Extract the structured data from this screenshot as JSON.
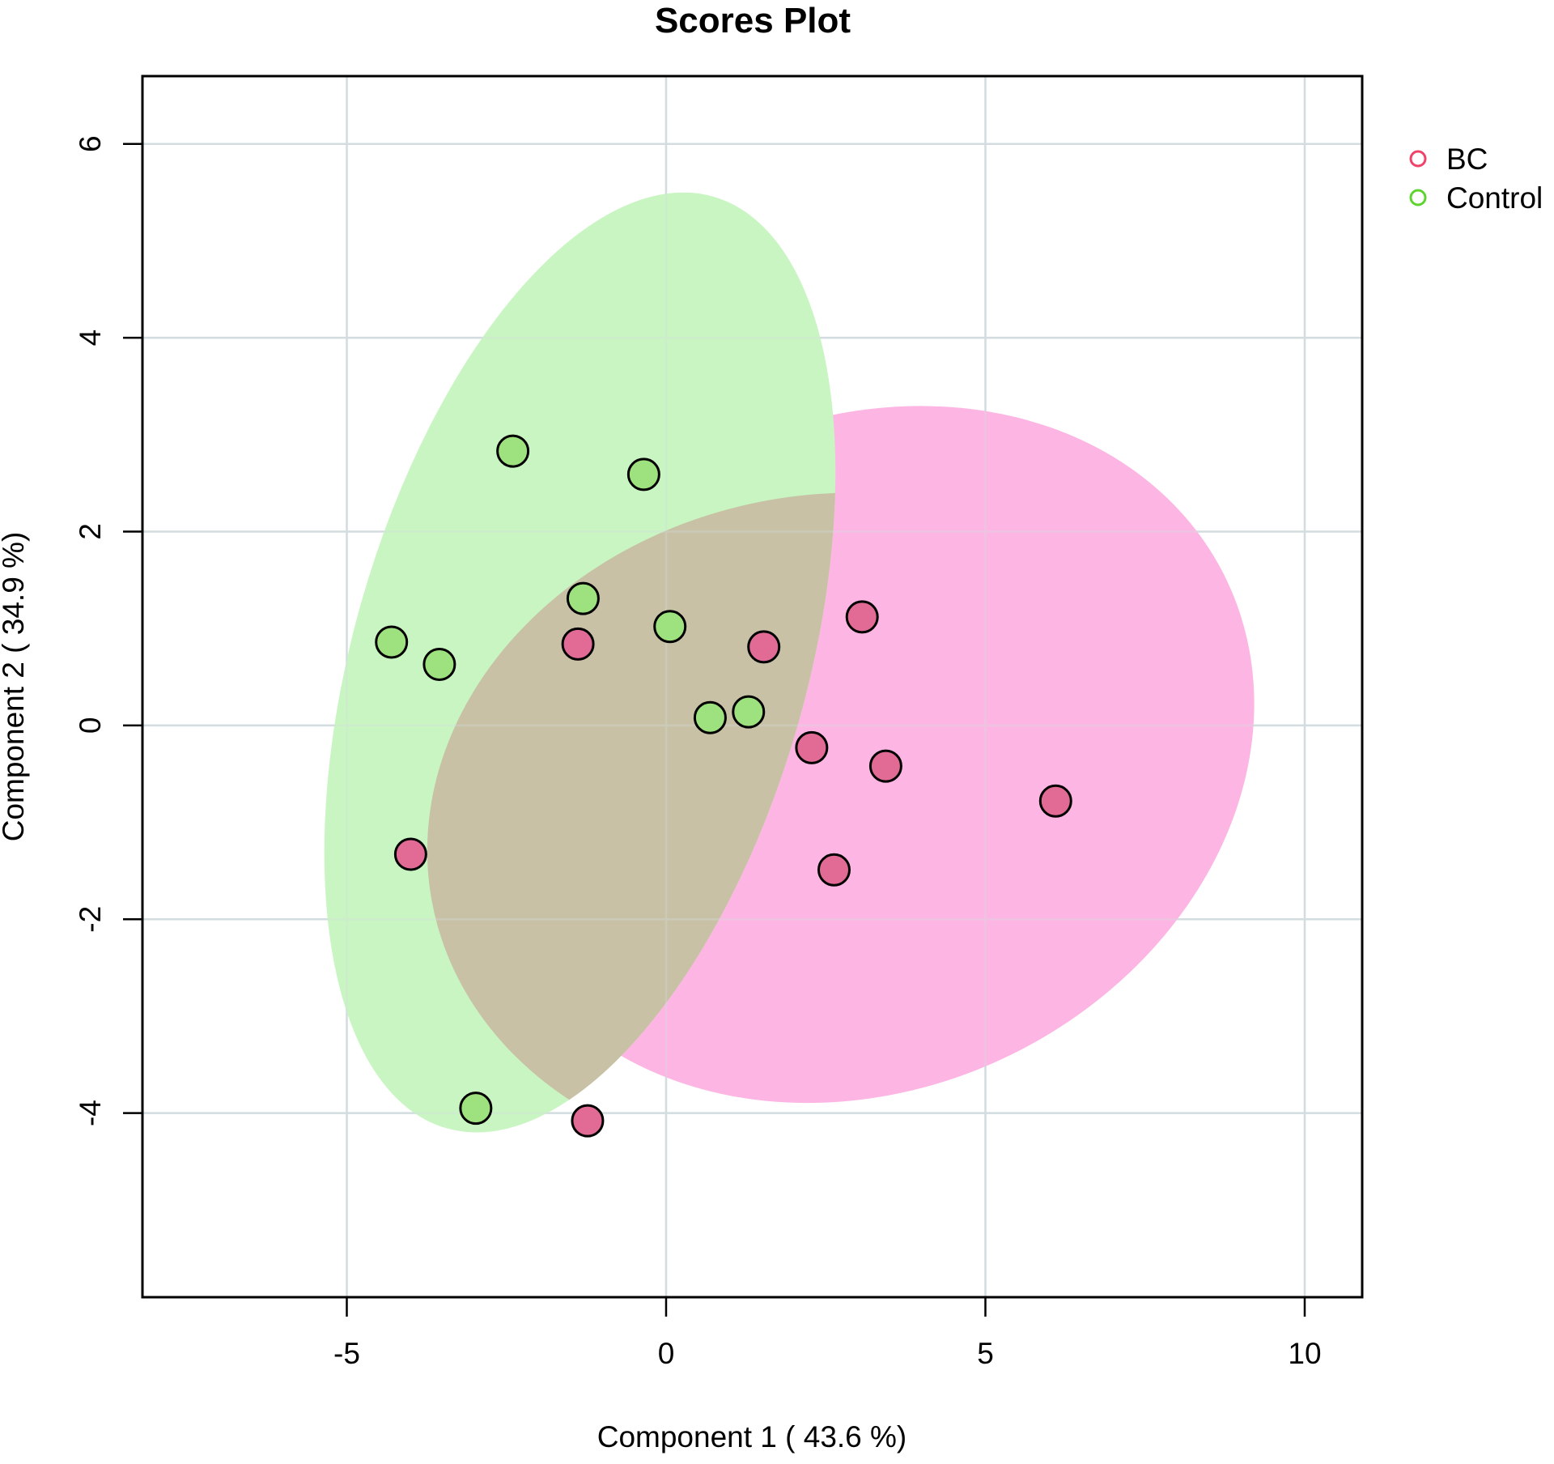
{
  "chart_data": {
    "type": "scatter",
    "title": "Scores Plot",
    "xlabel": "Component 1 ( 43.6 %)",
    "ylabel": "Component 2 ( 34.9 %)",
    "xlim": [
      -8.2,
      10.9
    ],
    "ylim": [
      -5.9,
      6.7
    ],
    "xticks": [
      -5,
      0,
      5,
      10
    ],
    "yticks": [
      -4,
      -2,
      0,
      2,
      4,
      6
    ],
    "grid": true,
    "legend_position": "right",
    "series": [
      {
        "name": "BC",
        "legend_color": "#f0436a",
        "point_color": "#e26b96",
        "ellipse_color": "#fdb6e3",
        "points": [
          {
            "x": -4.0,
            "y": -1.33
          },
          {
            "x": -1.38,
            "y": 0.84
          },
          {
            "x": 1.53,
            "y": 0.81
          },
          {
            "x": 3.07,
            "y": 1.12
          },
          {
            "x": 2.28,
            "y": -0.23
          },
          {
            "x": 3.44,
            "y": -0.42
          },
          {
            "x": 6.1,
            "y": -0.78
          },
          {
            "x": 2.63,
            "y": -1.49
          },
          {
            "x": -1.23,
            "y": -4.08
          }
        ],
        "ellipse": {
          "cx": 3.1,
          "cy": -0.3,
          "rx": 6.3,
          "ry": 3.45,
          "angle_deg": 26
        }
      },
      {
        "name": "Control",
        "legend_color": "#5fd42e",
        "point_color": "#9ee27f",
        "ellipse_color": "#c9f5c2",
        "points": [
          {
            "x": -2.4,
            "y": 2.83
          },
          {
            "x": -0.35,
            "y": 2.59
          },
          {
            "x": -1.3,
            "y": 1.31
          },
          {
            "x": 0.06,
            "y": 1.02
          },
          {
            "x": -4.3,
            "y": 0.86
          },
          {
            "x": -3.55,
            "y": 0.63
          },
          {
            "x": 0.69,
            "y": 0.08
          },
          {
            "x": 1.29,
            "y": 0.14
          },
          {
            "x": -2.98,
            "y": -3.95
          }
        ],
        "ellipse": {
          "cx": -1.35,
          "cy": 0.65,
          "rx": 3.55,
          "ry": 5.0,
          "angle_deg": -16
        }
      }
    ],
    "overlap_color": "#c8c1a5"
  }
}
